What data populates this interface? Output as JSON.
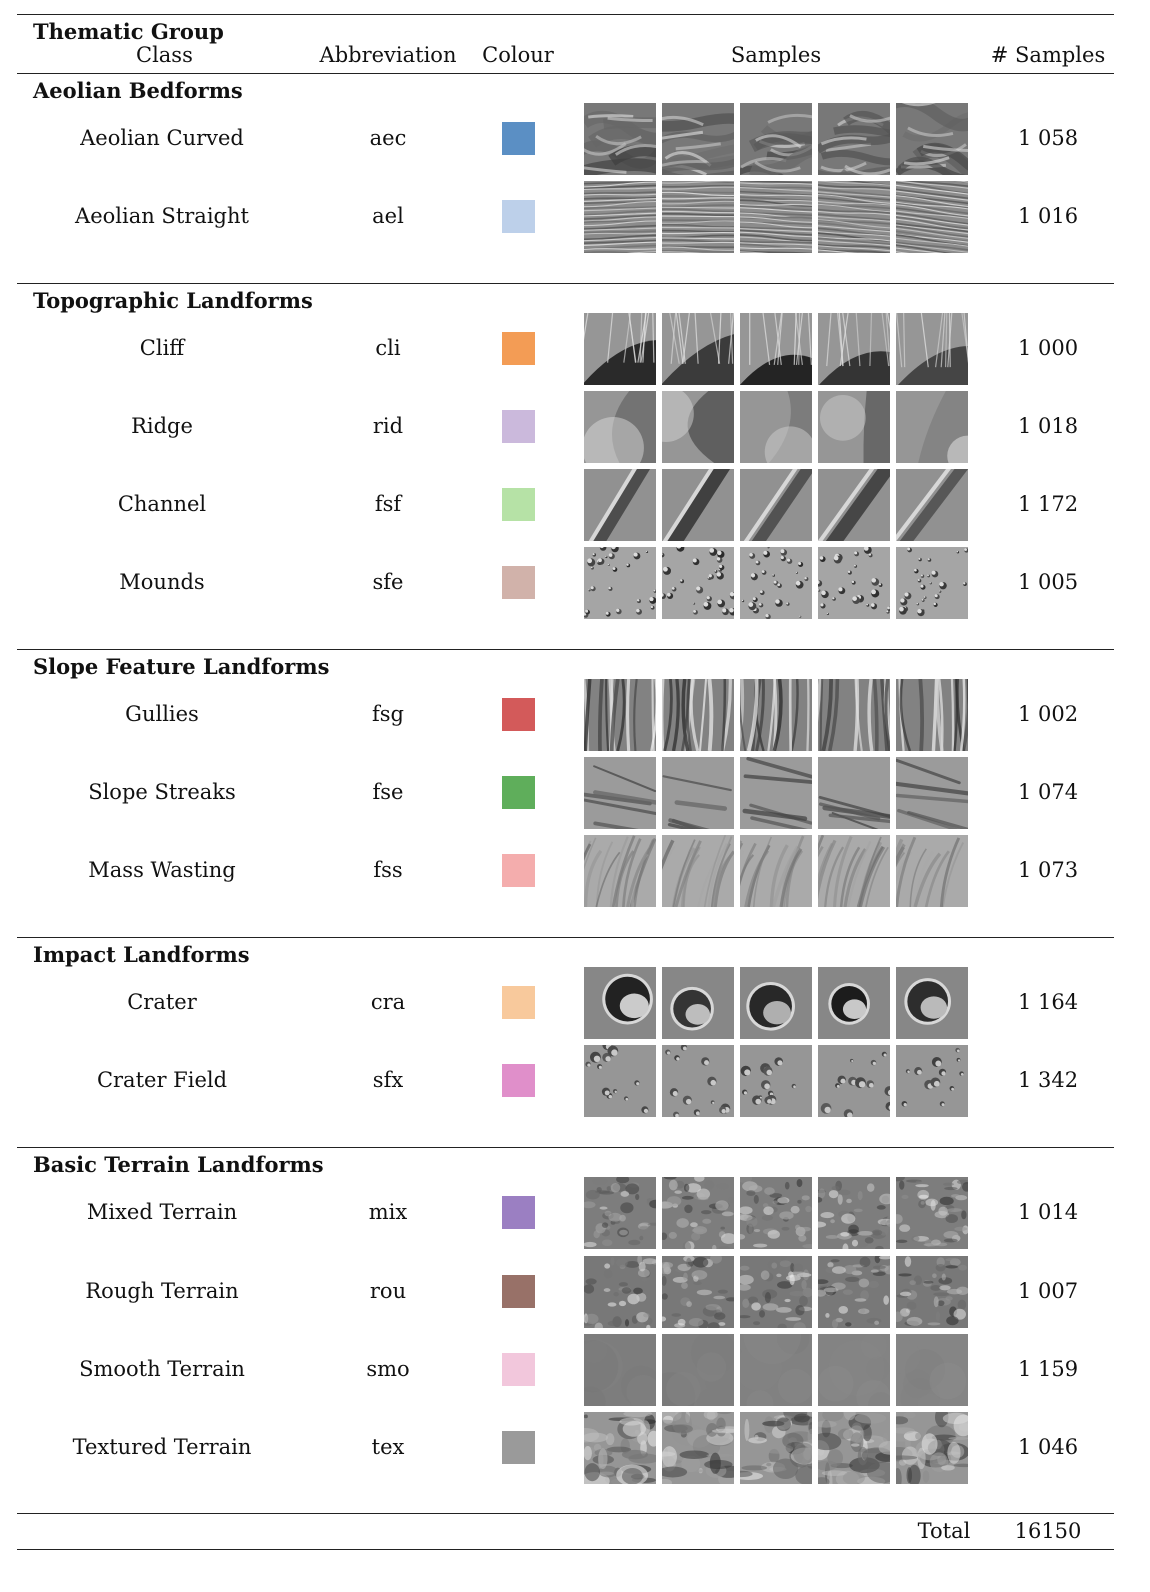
{
  "header": {
    "thematic_group": "Thematic Group",
    "class": "Class",
    "abbreviation": "Abbreviation",
    "colour": "Colour",
    "samples": "Samples",
    "num_samples": "# Samples"
  },
  "groups": [
    {
      "title": "Aeolian Bedforms",
      "rows": [
        {
          "class": "Aeolian Curved",
          "abbr": "aec",
          "colour": "#5b8fc4",
          "count": "1 058",
          "texture": "dune"
        },
        {
          "class": "Aeolian Straight",
          "abbr": "ael",
          "colour": "#bdd0ea",
          "count": "1 016",
          "texture": "ripple"
        }
      ]
    },
    {
      "title": "Topographic Landforms",
      "rows": [
        {
          "class": "Cliff",
          "abbr": "cli",
          "colour": "#f39c55",
          "count": "1 000",
          "texture": "cliff"
        },
        {
          "class": "Ridge",
          "abbr": "rid",
          "colour": "#cbb9dc",
          "count": "1 018",
          "texture": "ridge"
        },
        {
          "class": "Channel",
          "abbr": "fsf",
          "colour": "#b6e2a6",
          "count": "1 172",
          "texture": "channel"
        },
        {
          "class": "Mounds",
          "abbr": "sfe",
          "colour": "#d1b2aa",
          "count": "1 005",
          "texture": "mounds"
        }
      ]
    },
    {
      "title": "Slope Feature Landforms",
      "rows": [
        {
          "class": "Gullies",
          "abbr": "fsg",
          "colour": "#d35a5a",
          "count": "1 002",
          "texture": "gullies"
        },
        {
          "class": "Slope Streaks",
          "abbr": "fse",
          "colour": "#5fae5b",
          "count": "1 074",
          "texture": "streaks"
        },
        {
          "class": "Mass Wasting",
          "abbr": "fss",
          "colour": "#f4adad",
          "count": "1 073",
          "texture": "wasting"
        }
      ]
    },
    {
      "title": "Impact Landforms",
      "rows": [
        {
          "class": "Crater",
          "abbr": "cra",
          "colour": "#f8c99c",
          "count": "1 164",
          "texture": "crater"
        },
        {
          "class": "Crater Field",
          "abbr": "sfx",
          "colour": "#e08fca",
          "count": "1 342",
          "texture": "craterfield"
        }
      ]
    },
    {
      "title": "Basic Terrain Landforms",
      "rows": [
        {
          "class": "Mixed Terrain",
          "abbr": "mix",
          "colour": "#9b7fc2",
          "count": "1 014",
          "texture": "mixed"
        },
        {
          "class": "Rough Terrain",
          "abbr": "rou",
          "colour": "#987168",
          "count": "1 007",
          "texture": "rough"
        },
        {
          "class": "Smooth Terrain",
          "abbr": "smo",
          "colour": "#f2c7dc",
          "count": "1 159",
          "texture": "smooth"
        },
        {
          "class": "Textured Terrain",
          "abbr": "tex",
          "colour": "#9a9a9a",
          "count": "1 046",
          "texture": "textured"
        }
      ]
    }
  ],
  "total": {
    "label": "Total",
    "value": "16150"
  }
}
